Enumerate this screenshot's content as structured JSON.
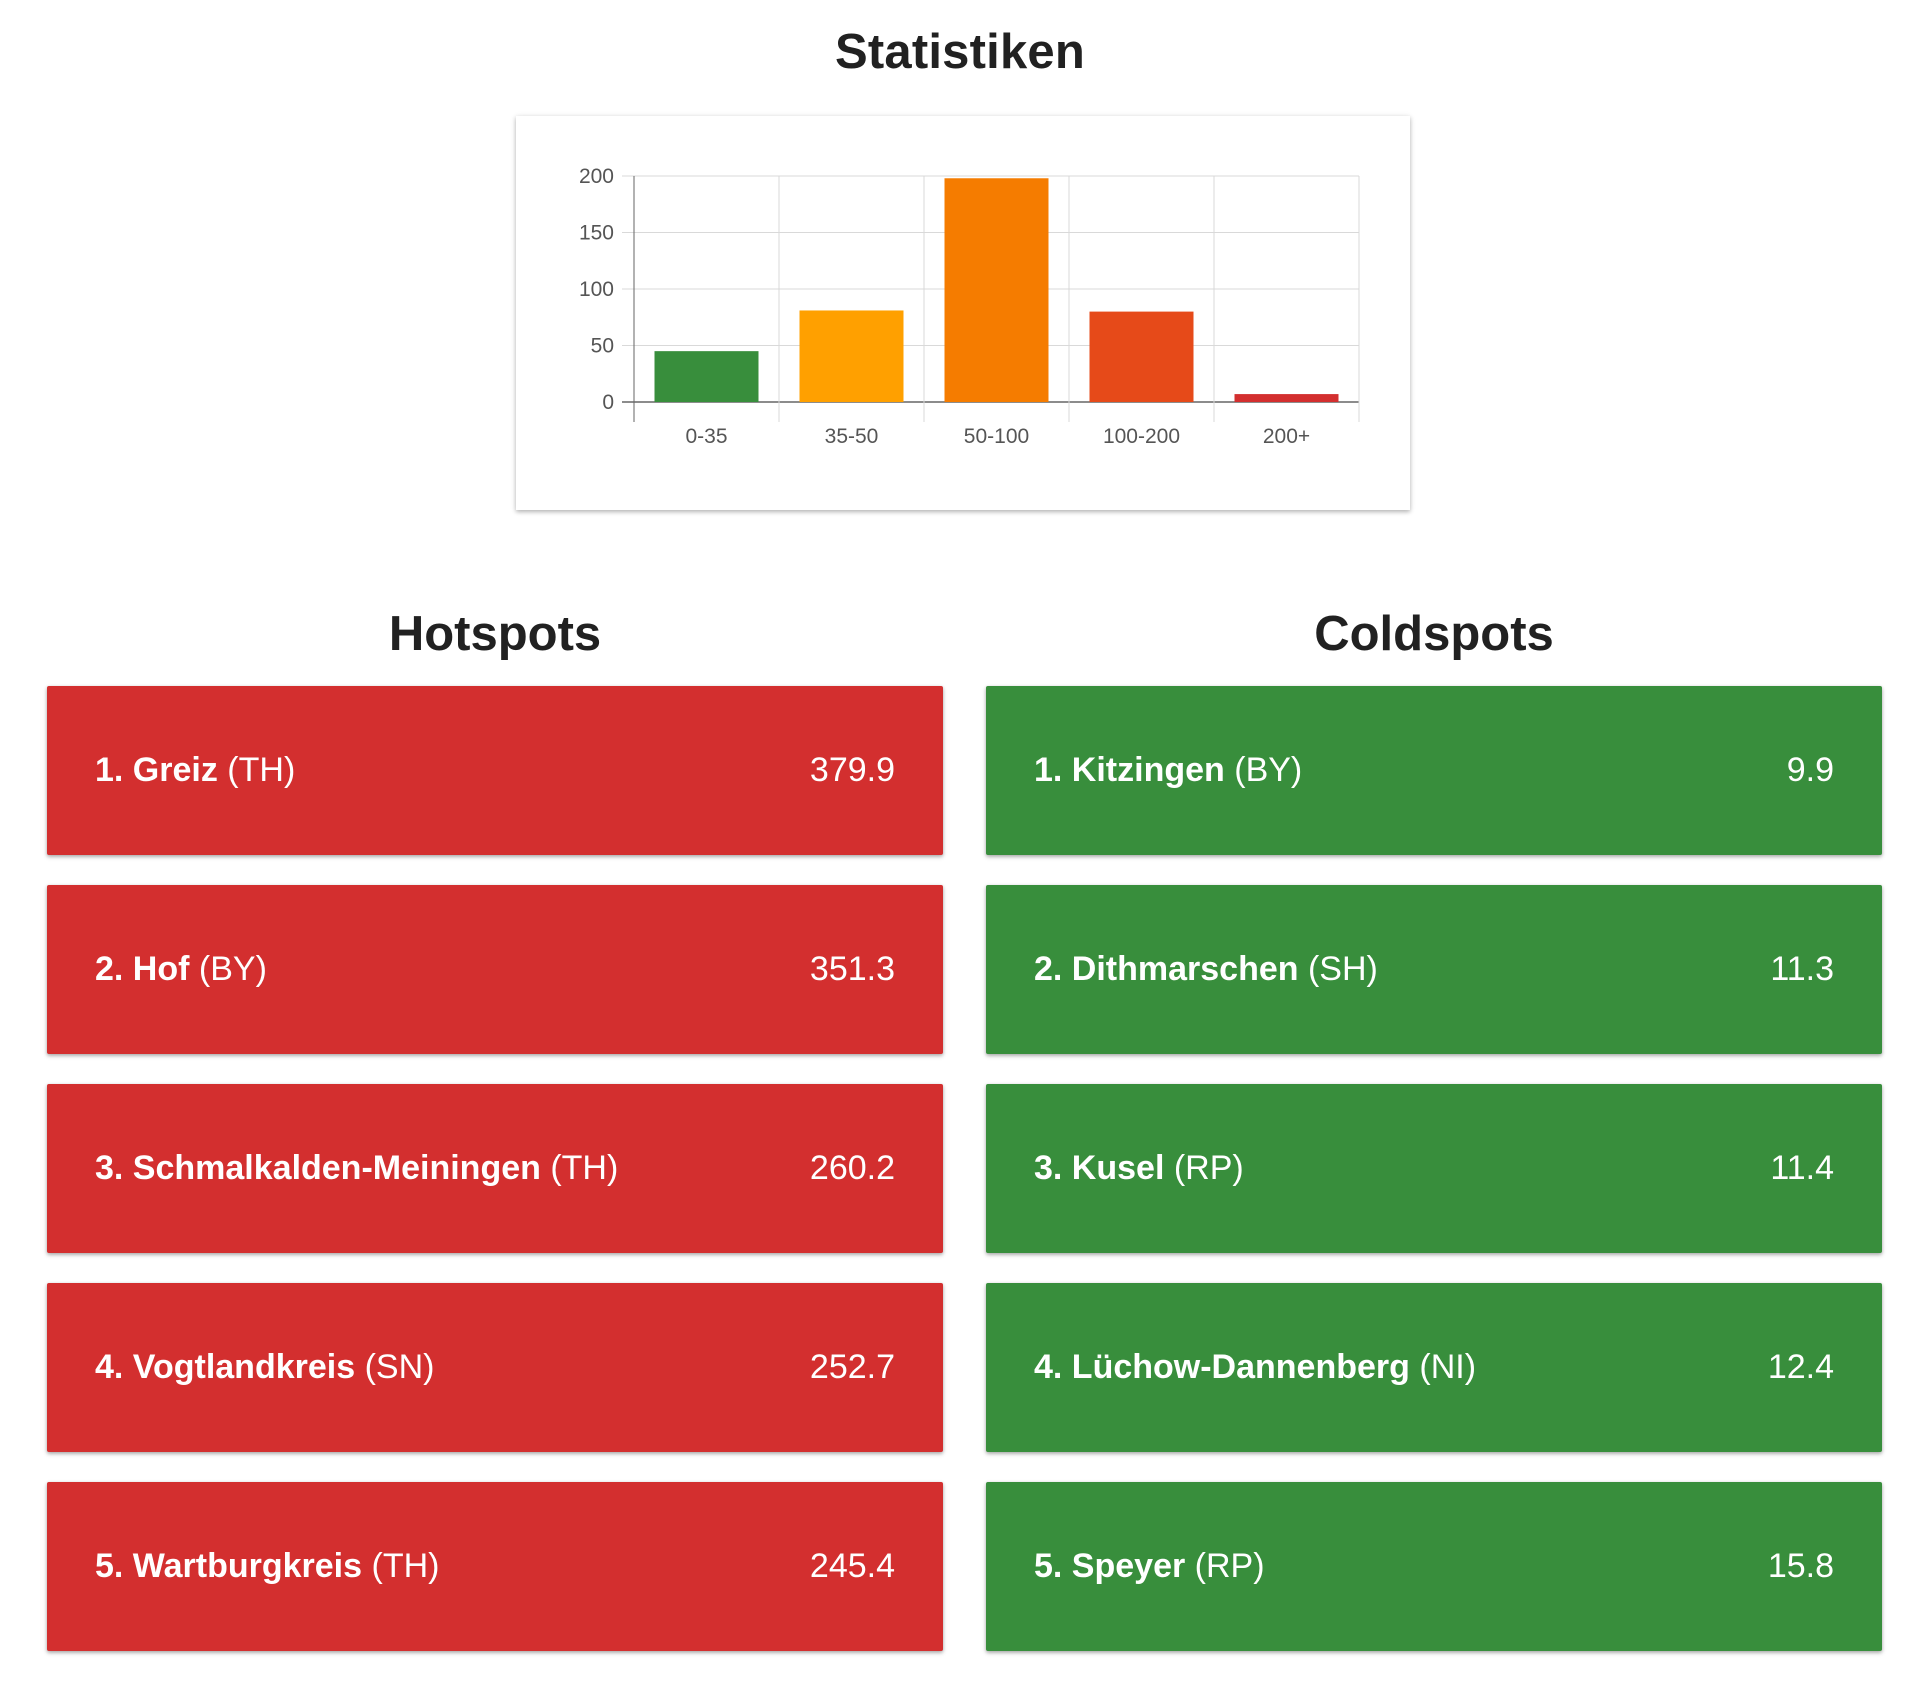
{
  "page": {
    "title": "Statistiken"
  },
  "colors": {
    "hotspot_bg": "#d32f2f",
    "coldspot_bg": "#388e3c",
    "grid": "#d9d9d9",
    "axis": "#666666",
    "tick_text": "#555555"
  },
  "chart_data": {
    "type": "bar",
    "categories": [
      "0-35",
      "35-50",
      "50-100",
      "100-200",
      "200+"
    ],
    "values": [
      45,
      81,
      198,
      80,
      7
    ],
    "colors": [
      "#388e3c",
      "#ffa000",
      "#f57c00",
      "#e64a19",
      "#d32f2f"
    ],
    "yticks": [
      "200",
      "150",
      "100",
      "50",
      "0"
    ],
    "ylim": [
      0,
      200
    ],
    "title": "",
    "xlabel": "",
    "ylabel": "",
    "grid": true,
    "legend": "none"
  },
  "hotspots": {
    "title": "Hotspots",
    "items": [
      {
        "name": "1. Greiz",
        "state": "(TH)",
        "value": "379.9"
      },
      {
        "name": "2. Hof",
        "state": "(BY)",
        "value": "351.3"
      },
      {
        "name": "3. Schmalkalden-Meiningen",
        "state": "(TH)",
        "value": "260.2"
      },
      {
        "name": "4. Vogtlandkreis",
        "state": "(SN)",
        "value": "252.7"
      },
      {
        "name": "5. Wartburgkreis",
        "state": "(TH)",
        "value": "245.4"
      }
    ]
  },
  "coldspots": {
    "title": "Coldspots",
    "items": [
      {
        "name": "1. Kitzingen",
        "state": "(BY)",
        "value": "9.9"
      },
      {
        "name": "2. Dithmarschen",
        "state": "(SH)",
        "value": "11.3"
      },
      {
        "name": "3. Kusel",
        "state": "(RP)",
        "value": "11.4"
      },
      {
        "name": "4. Lüchow-Dannenberg",
        "state": "(NI)",
        "value": "12.4"
      },
      {
        "name": "5. Speyer",
        "state": "(RP)",
        "value": "15.8"
      }
    ]
  }
}
